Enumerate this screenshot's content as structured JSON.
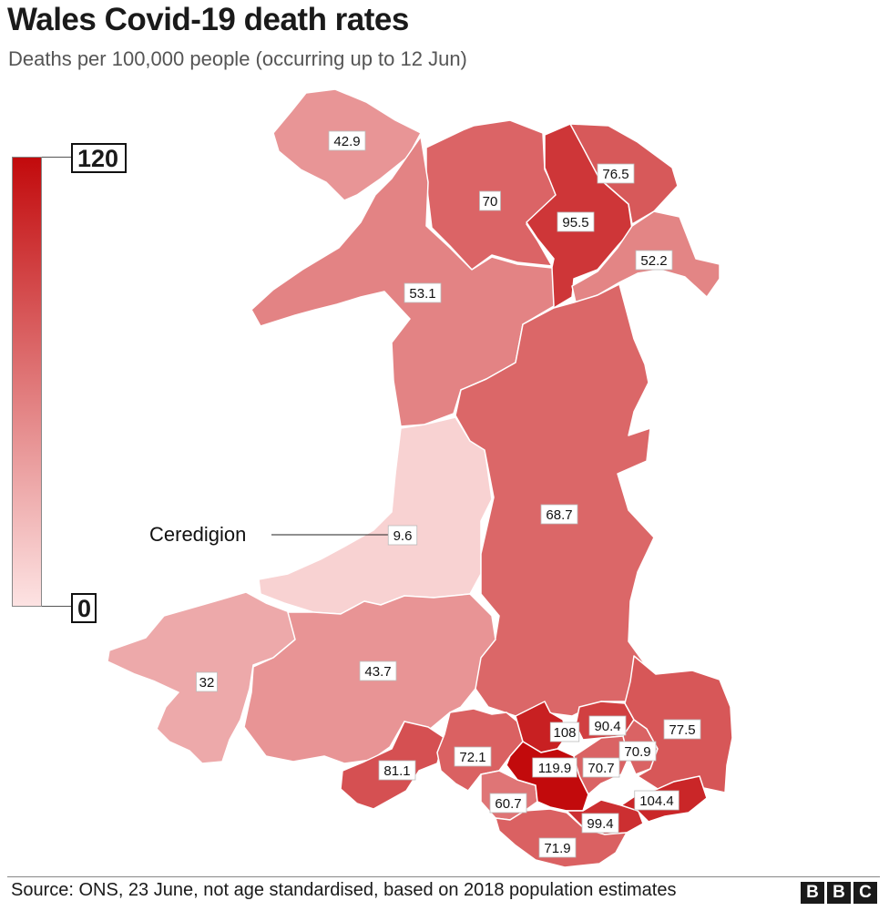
{
  "title": "Wales Covid-19 death rates",
  "subtitle": "Deaths per 100,000 people (occurring up to 12 Jun)",
  "legend": {
    "max_label": "120",
    "min_label": "0",
    "max_value": 120,
    "min_value": 0,
    "color_high": "#c20a0c",
    "color_low": "#fde3e3"
  },
  "callout": {
    "label": "Ceredigion",
    "region_index": 5
  },
  "chart_data": {
    "type": "choropleth",
    "regions": [
      {
        "value": 42.9,
        "label": "42.9"
      },
      {
        "value": 70,
        "label": "70"
      },
      {
        "value": 95.5,
        "label": "95.5"
      },
      {
        "value": 76.5,
        "label": "76.5"
      },
      {
        "value": 53.1,
        "label": "53.1"
      },
      {
        "value": 9.6,
        "label": "9.6"
      },
      {
        "value": 52.2,
        "label": "52.2"
      },
      {
        "value": 68.7,
        "label": "68.7"
      },
      {
        "value": 32,
        "label": "32"
      },
      {
        "value": 43.7,
        "label": "43.7"
      },
      {
        "value": 81.1,
        "label": "81.1"
      },
      {
        "value": 72.1,
        "label": "72.1"
      },
      {
        "value": 60.7,
        "label": "60.7"
      },
      {
        "value": 108,
        "label": "108"
      },
      {
        "value": 119.9,
        "label": "119.9"
      },
      {
        "value": 90.4,
        "label": "90.4"
      },
      {
        "value": 70.7,
        "label": "70.7"
      },
      {
        "value": 70.9,
        "label": "70.9"
      },
      {
        "value": 77.5,
        "label": "77.5"
      },
      {
        "value": 99.4,
        "label": "99.4"
      },
      {
        "value": 104.4,
        "label": "104.4"
      },
      {
        "value": 71.9,
        "label": "71.9"
      }
    ]
  },
  "source": "Source: ONS, 23 June, not age standardised, based on 2018 population estimates",
  "logo": [
    "B",
    "B",
    "C"
  ]
}
